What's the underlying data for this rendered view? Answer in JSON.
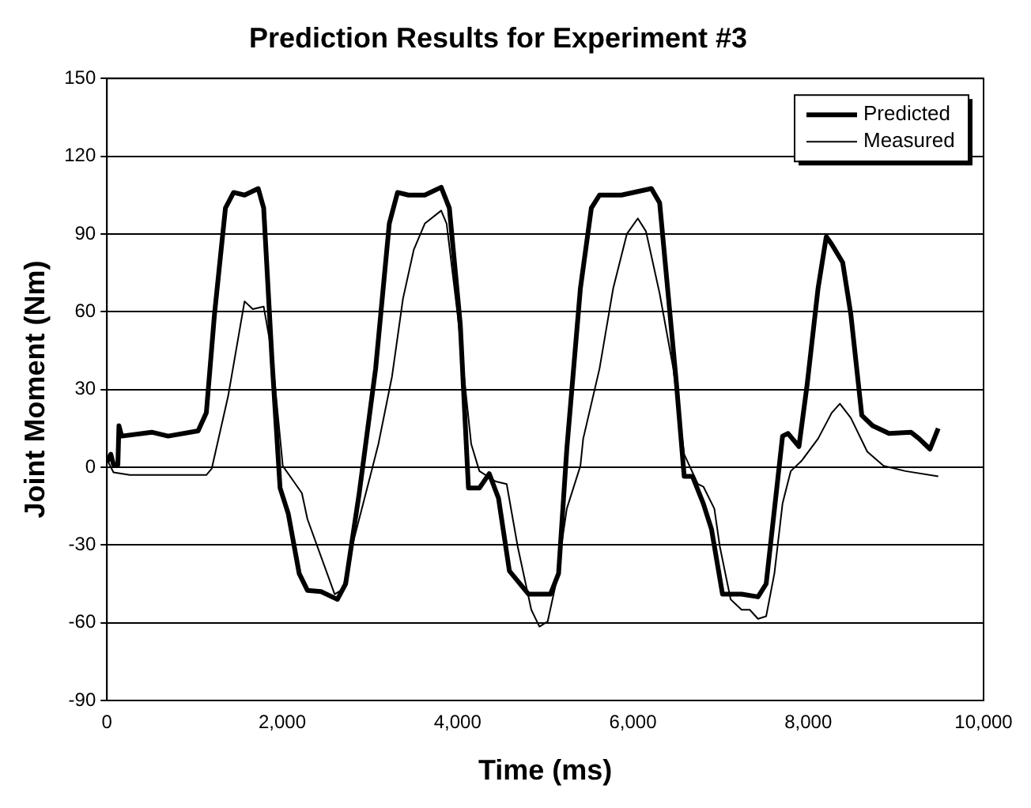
{
  "chart_data": {
    "type": "line",
    "title": "Prediction Results for Experiment #3",
    "xlabel": "Time (ms)",
    "ylabel": "Joint Moment (Nm)",
    "xlim": [
      0,
      10000
    ],
    "xticks": [
      0,
      {
        "value": 2000,
        "label": "2,000"
      },
      {
        "value": 4000,
        "label": "4,000"
      },
      {
        "value": 6000,
        "label": "6,000"
      },
      {
        "value": 8000,
        "label": "8,000"
      },
      {
        "value": 10000,
        "label": "10,000"
      }
    ],
    "ylim": [
      -90,
      150
    ],
    "yticks": [
      -90,
      -60,
      -30,
      0,
      30,
      60,
      90,
      120,
      150
    ],
    "grid": "y",
    "legend": "top right",
    "marker": "none",
    "line_style": "solid",
    "series": [
      {
        "name": "Predicted",
        "color": "#000000",
        "x": [
          0,
          44,
          75,
          125,
          137,
          168,
          511,
          698,
          1040,
          1134,
          1227,
          1352,
          1445,
          1570,
          1726,
          1788,
          1882,
          1975,
          2069,
          2193,
          2287,
          2442,
          2629,
          2723,
          2878,
          3065,
          3221,
          3315,
          3439,
          3626,
          3813,
          3906,
          4031,
          4124,
          4249,
          4361,
          4467,
          4591,
          4810,
          5059,
          5152,
          5246,
          5401,
          5526,
          5619,
          5869,
          6211,
          6305,
          6492,
          6585,
          6679,
          6803,
          6897,
          7022,
          7240,
          7427,
          7520,
          7707,
          7770,
          7894,
          7988,
          8112,
          8206,
          8268,
          8393,
          8486,
          8611,
          8735,
          8922,
          9171,
          9265,
          9389,
          9483
        ],
        "values": [
          2,
          5,
          1,
          1,
          16,
          12,
          13.5,
          12,
          14,
          21,
          59,
          100,
          106,
          105,
          107.5,
          100,
          42,
          -8,
          -18,
          -41,
          -47.5,
          -48,
          -51,
          -45,
          -10,
          38,
          94,
          106,
          105,
          105,
          108,
          100,
          55,
          -8,
          -8,
          -2.5,
          -12,
          -40,
          -49,
          -49,
          -41,
          7,
          69,
          100,
          105,
          105,
          107.5,
          102,
          34,
          -3.5,
          -3.5,
          -14,
          -24,
          -49,
          -49,
          -50,
          -45,
          12,
          13,
          8,
          32,
          69,
          89,
          86,
          79,
          59,
          20,
          16,
          13,
          13.5,
          11,
          7,
          15
        ]
      },
      {
        "name": "Measured",
        "color": "#000000",
        "x": [
          0,
          75,
          262,
          1134,
          1196,
          1383,
          1570,
          1664,
          1788,
          1882,
          2006,
          2131,
          2224,
          2287,
          2598,
          2692,
          2816,
          3003,
          3097,
          3252,
          3377,
          3501,
          3626,
          3813,
          3875,
          4000,
          4155,
          4249,
          4436,
          4560,
          4685,
          4841,
          4934,
          5028,
          5121,
          5246,
          5401,
          5433,
          5619,
          5775,
          5931,
          6056,
          6149,
          6305,
          6461,
          6585,
          6741,
          6804,
          6929,
          6991,
          7115,
          7240,
          7333,
          7427,
          7520,
          7614,
          7707,
          7801,
          7925,
          8112,
          8268,
          8361,
          8486,
          8673,
          8860,
          9109,
          9483
        ],
        "values": [
          3,
          -2,
          -3,
          -3,
          -0.5,
          27.5,
          64,
          61,
          62,
          44,
          0.5,
          -5.5,
          -10,
          -20,
          -49,
          -47,
          -28,
          -3.5,
          9,
          35,
          65,
          84,
          94,
          99,
          94,
          59,
          9,
          -1.5,
          -5.5,
          -6.5,
          -30.5,
          -55,
          -61.5,
          -59.5,
          -45,
          -16,
          0.5,
          11,
          38,
          69,
          90,
          96,
          91,
          67,
          38,
          5,
          -6.5,
          -7.5,
          -16,
          -30.5,
          -51,
          -55,
          -55,
          -58.5,
          -57.5,
          -41,
          -14,
          -1.5,
          2.5,
          11,
          21,
          24.5,
          19,
          6,
          0.5,
          -1.5,
          -3.5
        ]
      }
    ]
  }
}
